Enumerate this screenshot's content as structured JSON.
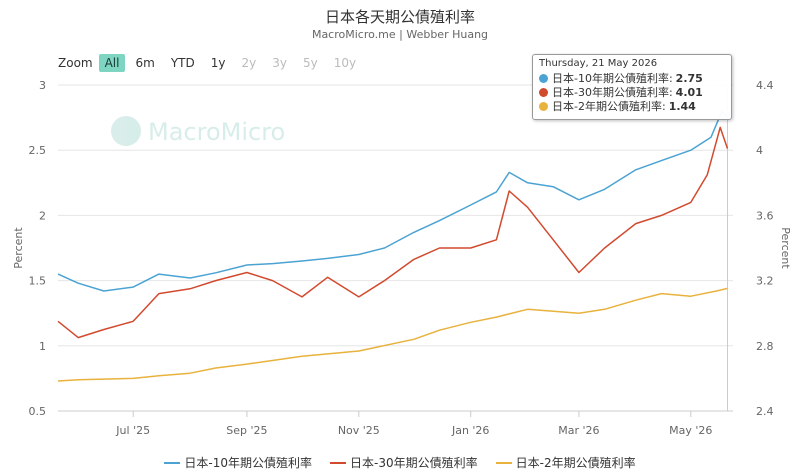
{
  "chart_data": {
    "type": "line",
    "title": "日本各天期公債殖利率",
    "subtitle": "MacroMicro.me | Webber Huang",
    "watermark": "MacroMicro",
    "ylabel_left": "Percent",
    "ylabel_right": "Percent",
    "ylim_left": [
      0.5,
      3
    ],
    "yticks_left": [
      "0.5",
      "1",
      "1.5",
      "2",
      "2.5",
      "3"
    ],
    "ylim_right": [
      2.4,
      4.4
    ],
    "yticks_right": [
      "2.4",
      "2.8",
      "3.2",
      "3.6",
      "4",
      "4.4"
    ],
    "xlim": [
      "2025-05-21",
      "2026-05-24"
    ],
    "xticks": [
      {
        "date": "2025-07-01",
        "label": "Jul '25"
      },
      {
        "date": "2025-09-01",
        "label": "Sep '25"
      },
      {
        "date": "2025-11-01",
        "label": "Nov '25"
      },
      {
        "date": "2026-01-01",
        "label": "Jan '26"
      },
      {
        "date": "2026-03-01",
        "label": "Mar '26"
      },
      {
        "date": "2026-05-01",
        "label": "May '26"
      }
    ],
    "grid": true,
    "legend_position": "bottom",
    "series": [
      {
        "name": "日本-10年期公債殖利率",
        "color": "#4ba3d3",
        "axis": "left",
        "points": [
          [
            "2025-05-21",
            1.55
          ],
          [
            "2025-06-01",
            1.48
          ],
          [
            "2025-06-15",
            1.42
          ],
          [
            "2025-07-01",
            1.45
          ],
          [
            "2025-07-15",
            1.55
          ],
          [
            "2025-08-01",
            1.52
          ],
          [
            "2025-08-15",
            1.56
          ],
          [
            "2025-09-01",
            1.62
          ],
          [
            "2025-09-15",
            1.63
          ],
          [
            "2025-10-01",
            1.65
          ],
          [
            "2025-10-15",
            1.67
          ],
          [
            "2025-11-01",
            1.7
          ],
          [
            "2025-11-15",
            1.75
          ],
          [
            "2025-12-01",
            1.87
          ],
          [
            "2025-12-15",
            1.96
          ],
          [
            "2026-01-01",
            2.08
          ],
          [
            "2026-01-15",
            2.18
          ],
          [
            "2026-01-22",
            2.33
          ],
          [
            "2026-02-01",
            2.25
          ],
          [
            "2026-02-15",
            2.22
          ],
          [
            "2026-03-01",
            2.12
          ],
          [
            "2026-03-15",
            2.2
          ],
          [
            "2026-04-01",
            2.35
          ],
          [
            "2026-04-15",
            2.42
          ],
          [
            "2026-05-01",
            2.5
          ],
          [
            "2026-05-12",
            2.6
          ],
          [
            "2026-05-18",
            2.8
          ],
          [
            "2026-05-21",
            2.75
          ]
        ]
      },
      {
        "name": "日本-30年期公債殖利率",
        "color": "#d24a2e",
        "axis": "right",
        "points": [
          [
            "2025-05-21",
            2.95
          ],
          [
            "2025-06-01",
            2.85
          ],
          [
            "2025-06-15",
            2.9
          ],
          [
            "2025-07-01",
            2.95
          ],
          [
            "2025-07-15",
            3.12
          ],
          [
            "2025-08-01",
            3.15
          ],
          [
            "2025-08-15",
            3.2
          ],
          [
            "2025-09-01",
            3.25
          ],
          [
            "2025-09-15",
            3.2
          ],
          [
            "2025-10-01",
            3.1
          ],
          [
            "2025-10-15",
            3.22
          ],
          [
            "2025-11-01",
            3.1
          ],
          [
            "2025-11-15",
            3.2
          ],
          [
            "2025-12-01",
            3.33
          ],
          [
            "2025-12-15",
            3.4
          ],
          [
            "2026-01-01",
            3.4
          ],
          [
            "2026-01-15",
            3.45
          ],
          [
            "2026-01-22",
            3.75
          ],
          [
            "2026-02-01",
            3.65
          ],
          [
            "2026-02-15",
            3.45
          ],
          [
            "2026-03-01",
            3.25
          ],
          [
            "2026-03-15",
            3.4
          ],
          [
            "2026-04-01",
            3.55
          ],
          [
            "2026-04-15",
            3.6
          ],
          [
            "2026-05-01",
            3.68
          ],
          [
            "2026-05-10",
            3.85
          ],
          [
            "2026-05-17",
            4.14
          ],
          [
            "2026-05-21",
            4.01
          ]
        ]
      },
      {
        "name": "日本-2年期公債殖利率",
        "color": "#e8b23d",
        "axis": "left",
        "points": [
          [
            "2025-05-21",
            0.73
          ],
          [
            "2025-06-01",
            0.74
          ],
          [
            "2025-07-01",
            0.75
          ],
          [
            "2025-07-15",
            0.77
          ],
          [
            "2025-08-01",
            0.79
          ],
          [
            "2025-08-15",
            0.83
          ],
          [
            "2025-09-01",
            0.86
          ],
          [
            "2025-10-01",
            0.92
          ],
          [
            "2025-11-01",
            0.96
          ],
          [
            "2025-12-01",
            1.05
          ],
          [
            "2025-12-15",
            1.12
          ],
          [
            "2026-01-01",
            1.18
          ],
          [
            "2026-01-15",
            1.22
          ],
          [
            "2026-02-01",
            1.28
          ],
          [
            "2026-03-01",
            1.25
          ],
          [
            "2026-03-15",
            1.28
          ],
          [
            "2026-04-01",
            1.35
          ],
          [
            "2026-04-15",
            1.4
          ],
          [
            "2026-05-01",
            1.38
          ],
          [
            "2026-05-15",
            1.42
          ],
          [
            "2026-05-21",
            1.44
          ]
        ]
      }
    ]
  },
  "zoom": {
    "label": "Zoom",
    "buttons": [
      {
        "label": "All",
        "state": "active"
      },
      {
        "label": "6m",
        "state": "normal"
      },
      {
        "label": "YTD",
        "state": "normal"
      },
      {
        "label": "1y",
        "state": "normal"
      },
      {
        "label": "2y",
        "state": "disabled"
      },
      {
        "label": "3y",
        "state": "disabled"
      },
      {
        "label": "5y",
        "state": "disabled"
      },
      {
        "label": "10y",
        "state": "disabled"
      }
    ]
  },
  "tooltip": {
    "date": "Thursday, 21 May 2026",
    "rows": [
      {
        "label": "日本-10年期公債殖利率:",
        "value": "2.75",
        "color": "#4ba3d3"
      },
      {
        "label": "日本-30年期公債殖利率:",
        "value": "4.01",
        "color": "#d24a2e"
      },
      {
        "label": "日本-2年期公債殖利率:",
        "value": "1.44",
        "color": "#e8b23d"
      }
    ]
  }
}
